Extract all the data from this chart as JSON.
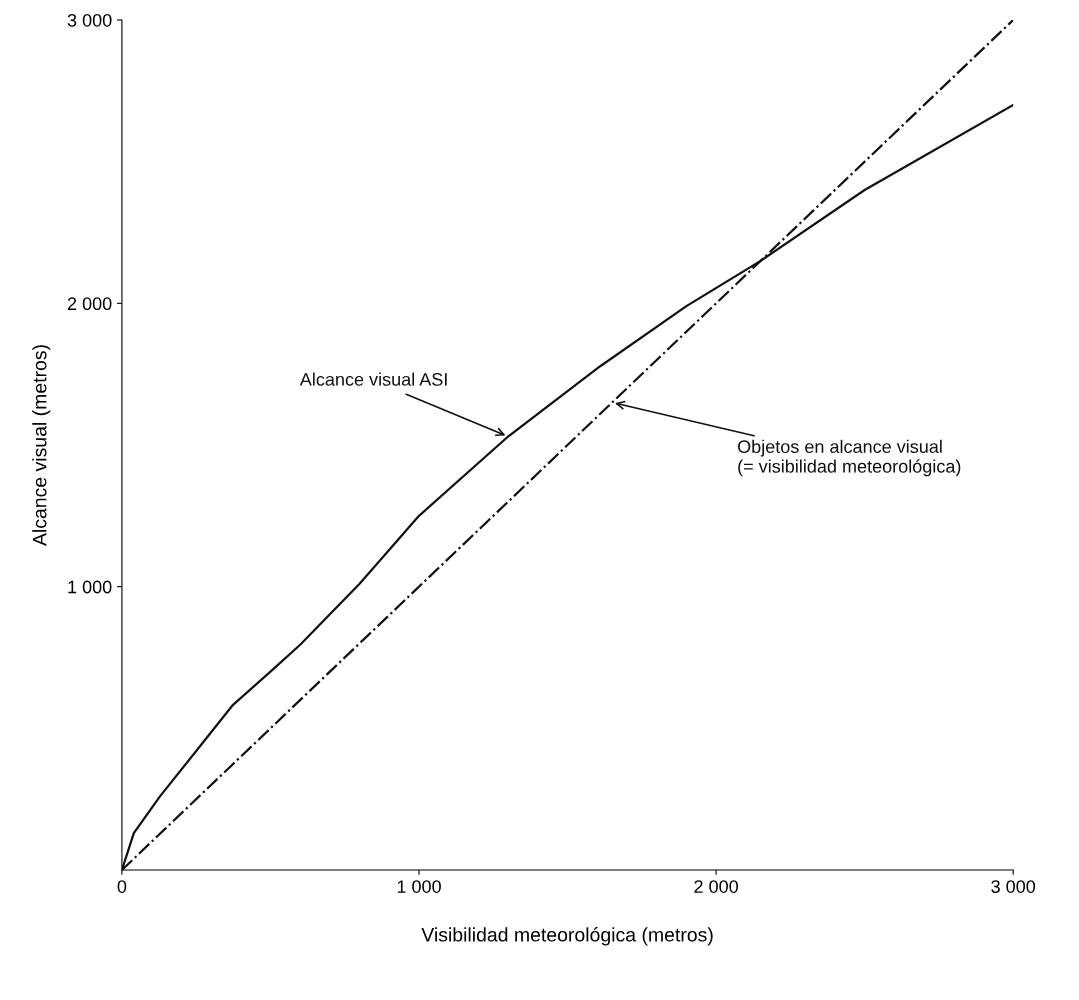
{
  "chart_data": {
    "type": "line",
    "xlabel": "Visibilidad meteorológica (metros)",
    "ylabel": "Alcance visual (metros)",
    "xlim": [
      0,
      3000
    ],
    "ylim": [
      0,
      3000
    ],
    "xticks": [
      0,
      {
        "value": 1000,
        "label": "1 000"
      },
      {
        "value": 2000,
        "label": "2 000"
      },
      {
        "value": 3000,
        "label": "3 000"
      }
    ],
    "yticks": [
      {
        "value": 1000,
        "label": "1 000"
      },
      {
        "value": 2000,
        "label": "2 000"
      },
      {
        "value": 3000,
        "label": "3 000"
      }
    ],
    "grid": false,
    "legend": false,
    "series": [
      {
        "color": "#111111",
        "line_style": "solid",
        "x": [
          0,
          40,
          128,
          250,
          374,
          500,
          600,
          800,
          1000,
          1300,
          1610,
          1900,
          2150,
          2500,
          3000
        ],
        "values": [
          0,
          130,
          260,
          420,
          583,
          700,
          795,
          1010,
          1250,
          1530,
          1778,
          1990,
          2150,
          2400,
          2700
        ]
      },
      {
        "color": "#111111",
        "line_style": "dashdot",
        "x": [
          0,
          3000
        ],
        "values": [
          0,
          3000
        ]
      }
    ],
    "annotations": [
      {
        "text": "Alcance visual ASI",
        "x": 1300,
        "y": 1530
      },
      {
        "text": "Objetos en alcance visual\n(= visibilidad meteorológica)",
        "x": 1650,
        "y": 1650
      }
    ]
  }
}
